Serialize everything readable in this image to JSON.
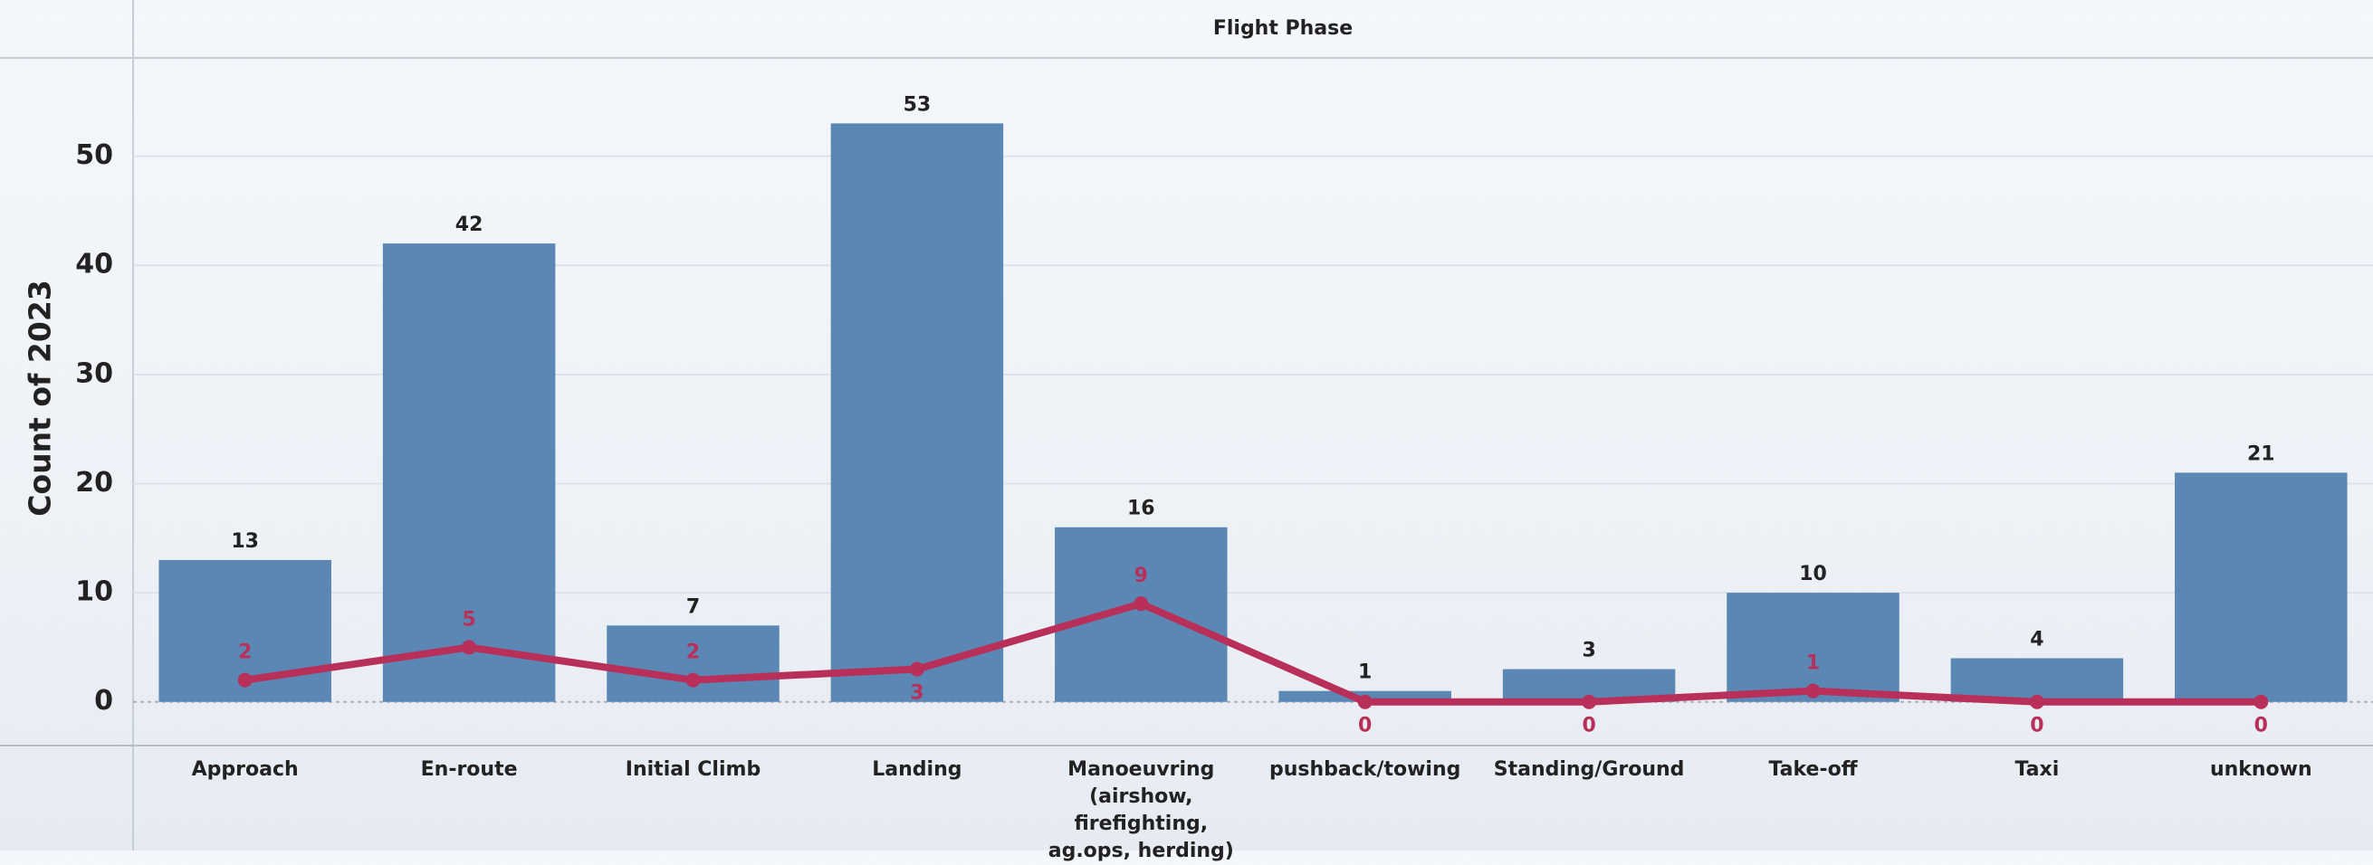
{
  "chart_data": {
    "type": "bar-line",
    "header": "Flight Phase",
    "y_label": "Count of 2023",
    "categories": [
      "Approach",
      "En-route",
      "Initial Climb",
      "Landing",
      "Manoeuvring\n(airshow, firefighting,\nag.ops, herding)",
      "pushback/towing",
      "Standing/Ground",
      "Take-off",
      "Taxi",
      "unknown"
    ],
    "series": [
      {
        "type": "bar",
        "color": "#5b87b4",
        "values": [
          13,
          42,
          7,
          53,
          16,
          1,
          3,
          10,
          4,
          21
        ]
      },
      {
        "type": "line",
        "color": "#b8305a",
        "values": [
          2,
          5,
          2,
          3,
          9,
          0,
          0,
          1,
          0,
          0
        ]
      }
    ],
    "ylim": [
      -4,
      59
    ],
    "yticks": [
      0,
      10,
      20,
      30,
      40,
      50
    ],
    "grid": true
  }
}
